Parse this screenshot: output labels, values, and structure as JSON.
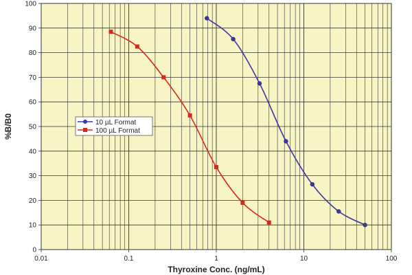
{
  "chart_data": {
    "type": "line",
    "title": "",
    "xlabel": "Thyroxine Conc. (ng/mL)",
    "ylabel": "%B/B0",
    "xscale": "log",
    "xlim": [
      0.01,
      100
    ],
    "ylim": [
      0,
      100
    ],
    "x_ticks": [
      "0.01",
      "0.1",
      "1",
      "10",
      "100"
    ],
    "y_ticks": [
      "0",
      "10",
      "20",
      "30",
      "40",
      "50",
      "60",
      "70",
      "80",
      "90",
      "100"
    ],
    "grid": true,
    "background_color": "#f8f4c4",
    "legend_position": "center-left",
    "series": [
      {
        "name": "10 µL Format",
        "color": "#3b35a8",
        "marker": "circle",
        "x": [
          0.78,
          1.56,
          3.12,
          6.25,
          12.5,
          25,
          50
        ],
        "y": [
          94,
          85.5,
          67.5,
          44,
          26.5,
          15.5,
          10
        ]
      },
      {
        "name": "100 µL Format",
        "color": "#d6281e",
        "marker": "square",
        "x": [
          0.0625,
          0.125,
          0.25,
          0.5,
          1,
          2,
          4
        ],
        "y": [
          88.5,
          82.5,
          70,
          54.5,
          33.5,
          19,
          11
        ]
      }
    ]
  }
}
